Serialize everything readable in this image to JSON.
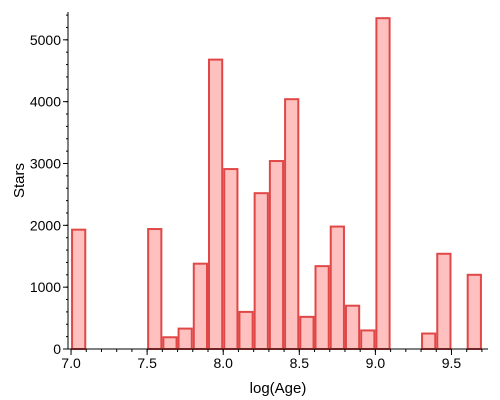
{
  "chart_data": {
    "type": "bar",
    "title": "",
    "xlabel": "log(Age)",
    "ylabel": "Stars",
    "xlim": [
      6.98,
      9.74
    ],
    "ylim": [
      0,
      5450
    ],
    "x_ticks": [
      7.0,
      7.5,
      8.0,
      8.5,
      9.0,
      9.5
    ],
    "x_tick_labels": [
      "7.0",
      "7.5",
      "8.0",
      "8.5",
      "9.0",
      "9.5"
    ],
    "y_ticks": [
      0,
      1000,
      2000,
      3000,
      4000,
      5000
    ],
    "y_tick_labels": [
      "0",
      "1000",
      "2000",
      "3000",
      "4000",
      "5000"
    ],
    "bin_width": 0.1,
    "grid": false,
    "legend": "none",
    "bar_fill": "#ffc0c0",
    "bar_stroke": "#e04848",
    "bins": [
      {
        "x0": 7.0,
        "value": 1930
      },
      {
        "x0": 7.5,
        "value": 1940
      },
      {
        "x0": 7.6,
        "value": 190
      },
      {
        "x0": 7.7,
        "value": 330
      },
      {
        "x0": 7.8,
        "value": 1380
      },
      {
        "x0": 7.9,
        "value": 4680
      },
      {
        "x0": 8.0,
        "value": 2910
      },
      {
        "x0": 8.1,
        "value": 600
      },
      {
        "x0": 8.2,
        "value": 2520
      },
      {
        "x0": 8.3,
        "value": 3040
      },
      {
        "x0": 8.4,
        "value": 4040
      },
      {
        "x0": 8.5,
        "value": 520
      },
      {
        "x0": 8.6,
        "value": 1340
      },
      {
        "x0": 8.7,
        "value": 1980
      },
      {
        "x0": 8.8,
        "value": 700
      },
      {
        "x0": 8.9,
        "value": 300
      },
      {
        "x0": 9.0,
        "value": 5350
      },
      {
        "x0": 9.3,
        "value": 250
      },
      {
        "x0": 9.4,
        "value": 1540
      },
      {
        "x0": 9.6,
        "value": 1200
      }
    ]
  }
}
